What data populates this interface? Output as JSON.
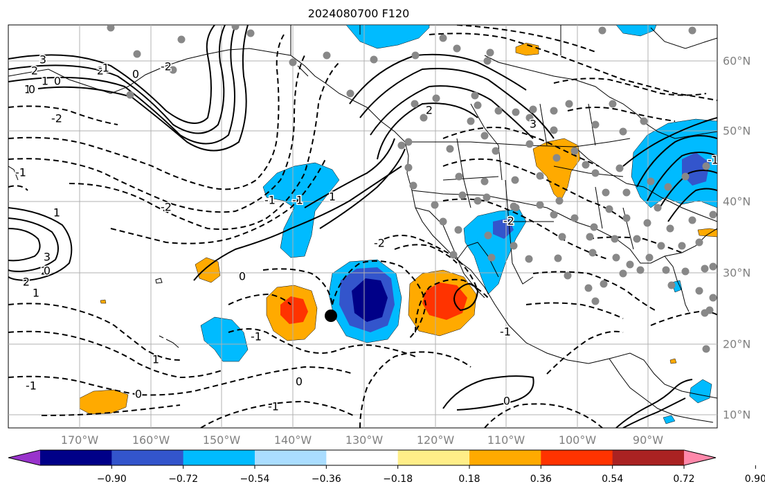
{
  "title": "2024080700 F120",
  "longitude_labels": [
    "170°W",
    "160°W",
    "150°W",
    "140°W",
    "130°W",
    "120°W",
    "110°W",
    "100°W",
    "90°W"
  ],
  "latitude_labels": [
    "60°N",
    "50°N",
    "40°N",
    "30°N",
    "20°N",
    "10°N"
  ],
  "colorbar": {
    "tick_labels": [
      "−0.90",
      "−0.72",
      "−0.54",
      "−0.36",
      "−0.18",
      "0.18",
      "0.36",
      "0.54",
      "0.72",
      "0.90"
    ],
    "colors": [
      "#9933cc",
      "#000088",
      "#3355cc",
      "#00bbff",
      "#aaddff",
      "#ffffff",
      "#ffee88",
      "#ffaa00",
      "#ff3300",
      "#aa2222",
      "#ff88aa"
    ]
  },
  "anomaly_colors": {
    "neg_light": "#aaddff",
    "neg_mid": "#00bbff",
    "neg_strong": "#3355cc",
    "neg_max": "#000088",
    "pos_light": "#ffee88",
    "pos_mid": "#ffaa00",
    "pos_strong": "#ff3300"
  },
  "contour_labels": [
    "3",
    "2",
    "1",
    "0",
    "-2",
    "-1",
    "2",
    "1",
    "0",
    "1",
    "2",
    "-2",
    "-1",
    "-1",
    "1",
    "-2",
    "0",
    "-1",
    "1",
    "-1",
    "0",
    "-1",
    "0",
    "-1",
    "0",
    "3",
    "2",
    "1",
    "0",
    "3",
    "2",
    "-1",
    "-1",
    "-2",
    "-2",
    "0"
  ],
  "marker_color": "#888888"
}
